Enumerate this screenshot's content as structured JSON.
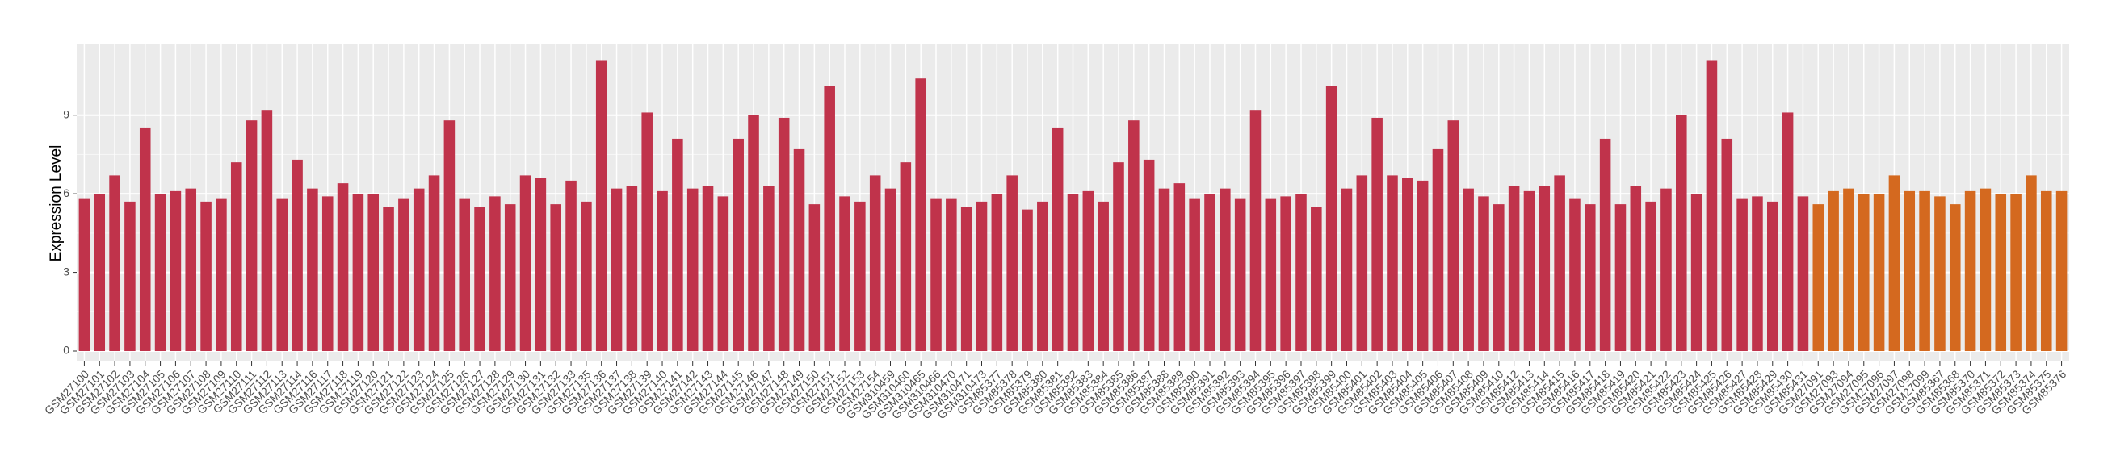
{
  "chart_data": {
    "type": "bar",
    "y_label": "Expression Level",
    "categories": [
      "GSM27100",
      "GSM27101",
      "GSM27102",
      "GSM27103",
      "GSM27104",
      "GSM27105",
      "GSM27106",
      "GSM27107",
      "GSM27108",
      "GSM27109",
      "GSM27110",
      "GSM27111",
      "GSM27112",
      "GSM27113",
      "GSM27114",
      "GSM27116",
      "GSM27117",
      "GSM27118",
      "GSM27119",
      "GSM27120",
      "GSM27121",
      "GSM27122",
      "GSM27123",
      "GSM27124",
      "GSM27125",
      "GSM27126",
      "GSM27127",
      "GSM27128",
      "GSM27129",
      "GSM27130",
      "GSM27131",
      "GSM27132",
      "GSM27133",
      "GSM27135",
      "GSM27136",
      "GSM27137",
      "GSM27138",
      "GSM27139",
      "GSM27140",
      "GSM27141",
      "GSM27142",
      "GSM27143",
      "GSM27144",
      "GSM27145",
      "GSM27146",
      "GSM27147",
      "GSM27148",
      "GSM27149",
      "GSM27150",
      "GSM27151",
      "GSM27152",
      "GSM27153",
      "GSM27154",
      "GSM310459",
      "GSM310460",
      "GSM310465",
      "GSM310466",
      "GSM310470",
      "GSM310471",
      "GSM310473",
      "GSM85377",
      "GSM85378",
      "GSM85379",
      "GSM85380",
      "GSM85381",
      "GSM85382",
      "GSM85383",
      "GSM85384",
      "GSM85385",
      "GSM85386",
      "GSM85387",
      "GSM85388",
      "GSM85389",
      "GSM85390",
      "GSM85391",
      "GSM85392",
      "GSM85393",
      "GSM85394",
      "GSM85395",
      "GSM85396",
      "GSM85397",
      "GSM85398",
      "GSM85399",
      "GSM85400",
      "GSM85401",
      "GSM85402",
      "GSM85403",
      "GSM85404",
      "GSM85405",
      "GSM85406",
      "GSM85407",
      "GSM85408",
      "GSM85409",
      "GSM85410",
      "GSM85412",
      "GSM85413",
      "GSM85414",
      "GSM85415",
      "GSM85416",
      "GSM85417",
      "GSM85418",
      "GSM85419",
      "GSM85420",
      "GSM85421",
      "GSM85422",
      "GSM85423",
      "GSM85424",
      "GSM85425",
      "GSM85426",
      "GSM85427",
      "GSM85428",
      "GSM85429",
      "GSM85430",
      "GSM85431",
      "GSM27091",
      "GSM27093",
      "GSM27094",
      "GSM27095",
      "GSM27096",
      "GSM27097",
      "GSM27098",
      "GSM27099",
      "GSM85367",
      "GSM85368",
      "GSM85370",
      "GSM85371",
      "GSM85372",
      "GSM85373",
      "GSM85374",
      "GSM85375",
      "GSM85376"
    ],
    "values": [
      5.8,
      6.0,
      6.7,
      5.7,
      8.5,
      6.0,
      6.1,
      6.2,
      5.7,
      5.8,
      7.2,
      8.8,
      9.2,
      5.8,
      7.3,
      6.2,
      5.9,
      6.4,
      6.0,
      6.0,
      5.5,
      5.8,
      6.2,
      6.7,
      8.8,
      5.8,
      5.5,
      5.9,
      5.6,
      6.7,
      6.6,
      5.6,
      6.5,
      5.7,
      11.1,
      6.2,
      6.3,
      9.1,
      6.1,
      8.1,
      6.2,
      6.3,
      5.9,
      8.1,
      9.0,
      6.3,
      8.9,
      7.7,
      5.6,
      10.1,
      5.9,
      5.7,
      6.7,
      6.2,
      7.2,
      10.4,
      5.8,
      5.8,
      5.5,
      5.7,
      6.0,
      6.7,
      5.4,
      5.7,
      8.5,
      6.0,
      6.1,
      5.7,
      7.2,
      8.8,
      7.3,
      6.2,
      6.4,
      5.8,
      6.0,
      6.2,
      5.8,
      9.2,
      5.8,
      5.9,
      6.0,
      5.5,
      10.1,
      6.2,
      6.7,
      8.9,
      6.7,
      6.6,
      6.5,
      7.7,
      8.8,
      6.2,
      5.9,
      5.6,
      6.3,
      6.1,
      6.3,
      6.7,
      5.8,
      5.6,
      8.1,
      5.6,
      6.3,
      5.7,
      6.2,
      9.0,
      6.0,
      11.1,
      8.1,
      5.8,
      5.9,
      5.7,
      9.1,
      5.9,
      5.6,
      6.1,
      6.2,
      6.0,
      6.0,
      6.7,
      6.1,
      6.1,
      5.9,
      5.6,
      6.1,
      6.2,
      6.0,
      6.0,
      6.7,
      6.1,
      6.1
    ],
    "bar_colors": [
      "#c0334b",
      "#c0334b",
      "#c0334b",
      "#c0334b",
      "#c0334b",
      "#c0334b",
      "#c0334b",
      "#c0334b",
      "#c0334b",
      "#c0334b",
      "#c0334b",
      "#c0334b",
      "#c0334b",
      "#c0334b",
      "#c0334b",
      "#c0334b",
      "#c0334b",
      "#c0334b",
      "#c0334b",
      "#c0334b",
      "#c0334b",
      "#c0334b",
      "#c0334b",
      "#c0334b",
      "#c0334b",
      "#c0334b",
      "#c0334b",
      "#c0334b",
      "#c0334b",
      "#c0334b",
      "#c0334b",
      "#c0334b",
      "#c0334b",
      "#c0334b",
      "#c0334b",
      "#c0334b",
      "#c0334b",
      "#c0334b",
      "#c0334b",
      "#c0334b",
      "#c0334b",
      "#c0334b",
      "#c0334b",
      "#c0334b",
      "#c0334b",
      "#c0334b",
      "#c0334b",
      "#c0334b",
      "#c0334b",
      "#c0334b",
      "#c0334b",
      "#c0334b",
      "#c0334b",
      "#c0334b",
      "#c0334b",
      "#c0334b",
      "#c0334b",
      "#c0334b",
      "#c0334b",
      "#c0334b",
      "#c0334b",
      "#c0334b",
      "#c0334b",
      "#c0334b",
      "#c0334b",
      "#c0334b",
      "#c0334b",
      "#c0334b",
      "#c0334b",
      "#c0334b",
      "#c0334b",
      "#c0334b",
      "#c0334b",
      "#c0334b",
      "#c0334b",
      "#c0334b",
      "#c0334b",
      "#c0334b",
      "#c0334b",
      "#c0334b",
      "#c0334b",
      "#c0334b",
      "#c0334b",
      "#c0334b",
      "#c0334b",
      "#c0334b",
      "#c0334b",
      "#c0334b",
      "#c0334b",
      "#c0334b",
      "#c0334b",
      "#c0334b",
      "#c0334b",
      "#c0334b",
      "#c0334b",
      "#c0334b",
      "#c0334b",
      "#c0334b",
      "#c0334b",
      "#c0334b",
      "#c0334b",
      "#c0334b",
      "#c0334b",
      "#c0334b",
      "#c0334b",
      "#c0334b",
      "#c0334b",
      "#c0334b",
      "#c0334b",
      "#c0334b",
      "#c0334b",
      "#c0334b",
      "#c0334b",
      "#c0334b",
      "#d4691f",
      "#d4691f",
      "#d4691f",
      "#d4691f",
      "#d4691f",
      "#d4691f",
      "#d4691f",
      "#d4691f",
      "#d4691f",
      "#d4691f",
      "#d4691f",
      "#d4691f",
      "#d4691f",
      "#d4691f",
      "#d4691f",
      "#d4691f",
      "#d4691f"
    ],
    "ylim": [
      -0.4,
      11.7
    ],
    "yticks": [
      0,
      3,
      6,
      9
    ],
    "grid": true
  }
}
